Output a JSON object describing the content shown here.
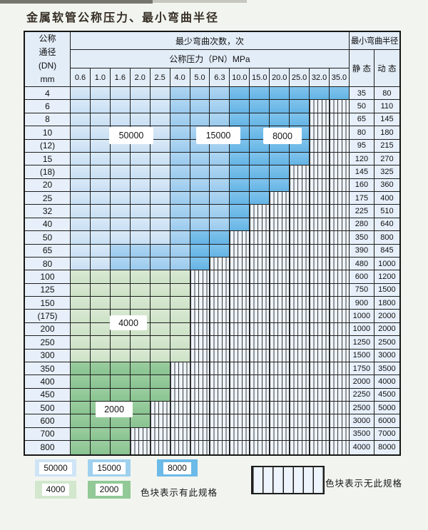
{
  "title": "金属软管公称压力、最小弯曲半径",
  "colors": {
    "blue_50000": "#cfe4f6",
    "blue_15000": "#9fd0ee",
    "blue_8000": "#6cbae7",
    "green_4000": "#d2e7cd",
    "green_2000": "#92c997",
    "no_spec_bg": "#eef4fb"
  },
  "table": {
    "header": {
      "dn_lines": [
        "公称",
        "通径",
        "(DN)",
        "mm"
      ],
      "bend_times": "最少弯曲次数，次",
      "pressure": "公称压力（PN）MPa",
      "pressures": [
        "0.6",
        "1.0",
        "1.6",
        "2.0",
        "2.5",
        "4.0",
        "5.0",
        "6.3",
        "10.0",
        "15.0",
        "20.0",
        "25.0",
        "32.0",
        "35.0"
      ],
      "radius": "最小弯曲半径",
      "static": "静 态",
      "dynamic": "动 态"
    },
    "overlays": [
      "50000",
      "15000",
      "8000",
      "4000",
      "2000"
    ],
    "rows": [
      {
        "dn": "4",
        "static": "35",
        "dynamic": "80",
        "spans": [
          [
            "b1",
            5
          ],
          [
            "b2",
            3
          ],
          [
            "b3",
            6
          ]
        ]
      },
      {
        "dn": "6",
        "static": "50",
        "dynamic": "110",
        "spans": [
          [
            "b1",
            5
          ],
          [
            "b2",
            3
          ],
          [
            "b3",
            4
          ]
        ]
      },
      {
        "dn": "8",
        "static": "65",
        "dynamic": "145",
        "spans": [
          [
            "b1",
            5
          ],
          [
            "b2",
            3
          ],
          [
            "b3",
            4
          ]
        ]
      },
      {
        "dn": "10",
        "static": "80",
        "dynamic": "180",
        "spans": [
          [
            "b1",
            5
          ],
          [
            "b2",
            3
          ],
          [
            "b3",
            4
          ]
        ]
      },
      {
        "dn": "(12)",
        "static": "95",
        "dynamic": "215",
        "spans": [
          [
            "b1",
            5
          ],
          [
            "b2",
            3
          ],
          [
            "b3",
            4
          ]
        ]
      },
      {
        "dn": "15",
        "static": "120",
        "dynamic": "270",
        "spans": [
          [
            "b1",
            5
          ],
          [
            "b2",
            3
          ],
          [
            "b3",
            4
          ]
        ]
      },
      {
        "dn": "(18)",
        "static": "145",
        "dynamic": "325",
        "spans": [
          [
            "b1",
            5
          ],
          [
            "b2",
            3
          ],
          [
            "b3",
            3
          ]
        ]
      },
      {
        "dn": "20",
        "static": "160",
        "dynamic": "360",
        "spans": [
          [
            "b1",
            5
          ],
          [
            "b2",
            3
          ],
          [
            "b3",
            3
          ]
        ]
      },
      {
        "dn": "25",
        "static": "175",
        "dynamic": "400",
        "spans": [
          [
            "b1",
            5
          ],
          [
            "b2",
            3
          ],
          [
            "b3",
            2
          ]
        ]
      },
      {
        "dn": "32",
        "static": "225",
        "dynamic": "510",
        "spans": [
          [
            "b1",
            5
          ],
          [
            "b2",
            3
          ],
          [
            "b3",
            1
          ]
        ]
      },
      {
        "dn": "40",
        "static": "280",
        "dynamic": "640",
        "spans": [
          [
            "b1",
            5
          ],
          [
            "b2",
            3
          ],
          [
            "b3",
            1
          ]
        ]
      },
      {
        "dn": "50",
        "static": "350",
        "dynamic": "800",
        "spans": [
          [
            "b1",
            5
          ],
          [
            "b2",
            1
          ],
          [
            "b3",
            2
          ]
        ]
      },
      {
        "dn": "65",
        "static": "390",
        "dynamic": "845",
        "spans": [
          [
            "b1",
            2
          ],
          [
            "b2",
            4
          ],
          [
            "b3",
            2
          ]
        ]
      },
      {
        "dn": "80",
        "static": "480",
        "dynamic": "1000",
        "spans": [
          [
            "b1",
            2
          ],
          [
            "b2",
            4
          ],
          [
            "b3",
            1
          ]
        ]
      },
      {
        "dn": "100",
        "static": "600",
        "dynamic": "1200",
        "spans": [
          [
            "g1",
            6
          ]
        ]
      },
      {
        "dn": "125",
        "static": "750",
        "dynamic": "1500",
        "spans": [
          [
            "g1",
            6
          ]
        ]
      },
      {
        "dn": "150",
        "static": "900",
        "dynamic": "1800",
        "spans": [
          [
            "g1",
            6
          ]
        ]
      },
      {
        "dn": "(175)",
        "static": "1000",
        "dynamic": "2000",
        "spans": [
          [
            "g1",
            6
          ]
        ]
      },
      {
        "dn": "200",
        "static": "1000",
        "dynamic": "2000",
        "spans": [
          [
            "g1",
            6
          ]
        ]
      },
      {
        "dn": "250",
        "static": "1250",
        "dynamic": "2500",
        "spans": [
          [
            "g1",
            6
          ]
        ]
      },
      {
        "dn": "300",
        "static": "1500",
        "dynamic": "3000",
        "spans": [
          [
            "g1",
            6
          ]
        ]
      },
      {
        "dn": "350",
        "static": "1750",
        "dynamic": "3500",
        "spans": [
          [
            "g2",
            5
          ]
        ]
      },
      {
        "dn": "400",
        "static": "2000",
        "dynamic": "4000",
        "spans": [
          [
            "g2",
            5
          ]
        ]
      },
      {
        "dn": "450",
        "static": "2250",
        "dynamic": "4500",
        "spans": [
          [
            "g2",
            5
          ]
        ]
      },
      {
        "dn": "500",
        "static": "2500",
        "dynamic": "5000",
        "spans": [
          [
            "g2",
            4
          ]
        ]
      },
      {
        "dn": "600",
        "static": "3000",
        "dynamic": "6000",
        "spans": [
          [
            "g2",
            4
          ]
        ]
      },
      {
        "dn": "700",
        "static": "3500",
        "dynamic": "7000",
        "spans": [
          [
            "g2",
            3
          ]
        ]
      },
      {
        "dn": "800",
        "static": "4000",
        "dynamic": "8000",
        "spans": [
          [
            "g2",
            3
          ]
        ]
      }
    ]
  },
  "legend": {
    "items": [
      {
        "label": "50000"
      },
      {
        "label": "15000"
      },
      {
        "label": "8000"
      },
      {
        "label": "4000"
      },
      {
        "label": "2000"
      }
    ],
    "has_spec_text": "色块表示有此规格",
    "no_spec_text": "色块表示无此规格"
  }
}
